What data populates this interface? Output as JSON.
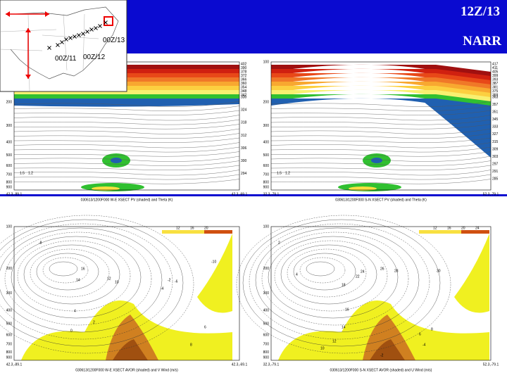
{
  "header": {
    "time": "12Z/13",
    "source": "NARR"
  },
  "map": {
    "labels": [
      "00Z/11",
      "00Z/12",
      "00Z/13"
    ]
  },
  "panels": [
    {
      "y_labels": [
        200,
        300,
        400,
        500,
        600,
        700,
        800,
        900
      ],
      "x_left": "42.3,-89.1",
      "x_right": "42.3,-69.1",
      "caption": "030613/1200F000 W-E XSECT PV (shaded) and Theta (K)",
      "right_labels": [
        402,
        390,
        378,
        372,
        366,
        360,
        354,
        348,
        342,
        330,
        324,
        318,
        312,
        306,
        300,
        294
      ],
      "legend": [
        "1.5",
        "1.2"
      ]
    },
    {
      "y_labels": [
        100,
        200,
        300,
        400,
        500,
        600,
        700,
        800,
        900
      ],
      "x_left": "32.3,-79.1",
      "x_right": "52.3,-79.1",
      "caption": "030613/1200F000 S-N XSECT PV (shaded) and Theta (K)",
      "right_labels": [
        417,
        411,
        405,
        399,
        393,
        387,
        381,
        375,
        369,
        363,
        357,
        351,
        345,
        333,
        327,
        315,
        309,
        303,
        297,
        291,
        285
      ],
      "legend": [
        "1.5",
        "1.2"
      ]
    },
    {
      "y_labels": [
        100,
        200,
        300,
        400,
        500,
        600,
        700,
        800,
        900
      ],
      "x_left": "42.3,-89.1",
      "x_right": "42.3,-69.1",
      "caption": "030613/1200F000 W-E XSECT AVOR (shaded) and V Wind (m/s)",
      "right_labels": [],
      "legend": [
        "12",
        "16",
        "20"
      ],
      "contour_labels": [
        "-8",
        "16",
        "14",
        "12",
        "10",
        "-2",
        "-4",
        "-6",
        "-10",
        "4",
        "2",
        "0",
        "6",
        "8"
      ]
    },
    {
      "y_labels": [
        100,
        200,
        300,
        400,
        500,
        600,
        700,
        800,
        900
      ],
      "x_left": "32.3,-79.1",
      "x_right": "52.3,-79.1",
      "caption": "030613/1200F000 S-N XSECT AVOR (shaded) and U Wind (m/s)",
      "right_labels": [],
      "legend": [
        "12",
        "16",
        "20",
        "24"
      ],
      "contour_labels": [
        "2",
        "4",
        "22",
        "24",
        "26",
        "28",
        "30",
        "18",
        "16",
        "14",
        "12",
        "10",
        "8",
        "6",
        "-2",
        "-4"
      ]
    }
  ]
}
